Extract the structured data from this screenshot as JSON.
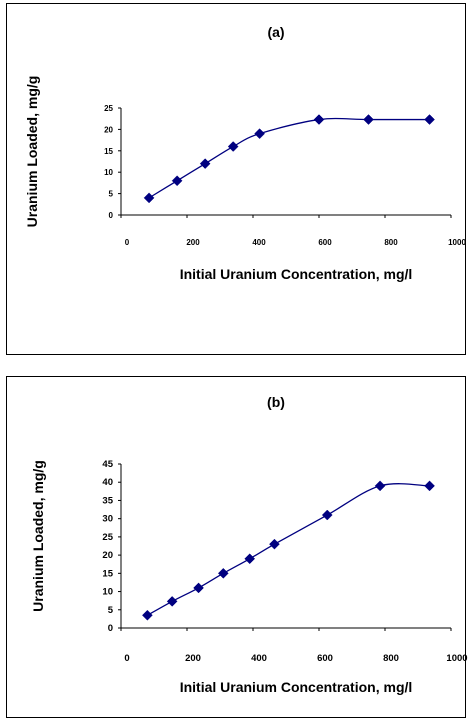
{
  "chart_data": [
    {
      "type": "line",
      "title": "(a)",
      "xlabel": "Initial Uranium Concentration, mg/l",
      "ylabel": "Uranium Loaded, mg/g",
      "xlim": [
        0,
        1000
      ],
      "ylim": [
        0,
        25
      ],
      "xticks": [
        0,
        200,
        400,
        600,
        800,
        1000
      ],
      "yticks": [
        0,
        5,
        10,
        15,
        20,
        25
      ],
      "grid": false,
      "legend": "none",
      "marker": "diamond",
      "color": "#000080",
      "series": [
        {
          "x": [
            85,
            170,
            255,
            340,
            420,
            600,
            750,
            935
          ],
          "y": [
            4,
            8,
            12,
            16,
            19,
            22.3,
            22.3,
            22.3
          ]
        }
      ]
    },
    {
      "type": "line",
      "title": "(b)",
      "xlabel": "Initial Uranium Concentration, mg/l",
      "ylabel": "Uranium Loaded, mg/g",
      "xlim": [
        0,
        1000
      ],
      "ylim": [
        0,
        45
      ],
      "xticks": [
        0,
        200,
        400,
        600,
        800,
        1000
      ],
      "yticks": [
        0,
        5,
        10,
        15,
        20,
        25,
        30,
        35,
        40,
        45
      ],
      "grid": false,
      "legend": "none",
      "marker": "diamond",
      "color": "#000080",
      "series": [
        {
          "x": [
            80,
            155,
            235,
            310,
            390,
            465,
            625,
            785,
            935
          ],
          "y": [
            3.5,
            7.3,
            11,
            15,
            19,
            23,
            31,
            39,
            39
          ]
        }
      ]
    }
  ]
}
